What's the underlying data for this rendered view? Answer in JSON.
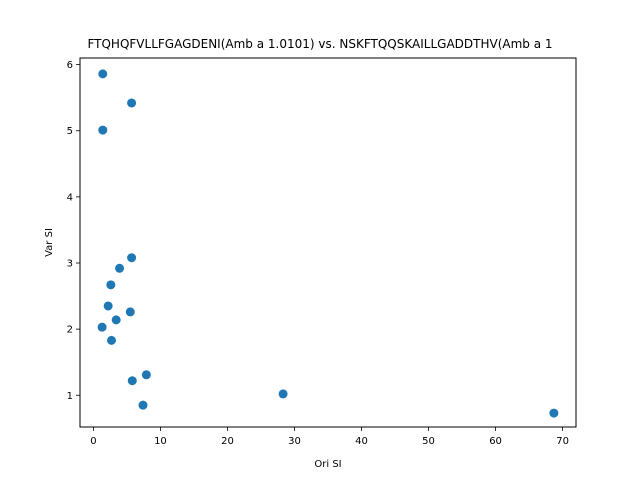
{
  "chart_data": {
    "type": "scatter",
    "title": "FTQHQFVLLFGAGDENI(Amb a 1.0101) vs. NSKFTQQSKAILLGADDTHV(Amb a 1",
    "xlabel": "Ori SI",
    "ylabel": "Var SI",
    "xlim": [
      -2.0,
      72.0
    ],
    "ylim": [
      0.52,
      6.1
    ],
    "xticks": [
      0,
      10,
      20,
      30,
      40,
      50,
      60,
      70
    ],
    "yticks": [
      1,
      2,
      3,
      4,
      5,
      6
    ],
    "grid": false,
    "marker_color": "#1f77b4",
    "points": [
      {
        "x": 1.4,
        "y": 5.86
      },
      {
        "x": 5.7,
        "y": 5.42
      },
      {
        "x": 1.4,
        "y": 5.01
      },
      {
        "x": 5.7,
        "y": 3.08
      },
      {
        "x": 3.9,
        "y": 2.92
      },
      {
        "x": 2.6,
        "y": 2.67
      },
      {
        "x": 2.2,
        "y": 2.35
      },
      {
        "x": 5.5,
        "y": 2.26
      },
      {
        "x": 3.4,
        "y": 2.14
      },
      {
        "x": 1.3,
        "y": 2.03
      },
      {
        "x": 2.7,
        "y": 1.83
      },
      {
        "x": 7.9,
        "y": 1.31
      },
      {
        "x": 5.8,
        "y": 1.22
      },
      {
        "x": 28.3,
        "y": 1.02
      },
      {
        "x": 7.4,
        "y": 0.85
      },
      {
        "x": 68.7,
        "y": 0.73
      }
    ]
  }
}
